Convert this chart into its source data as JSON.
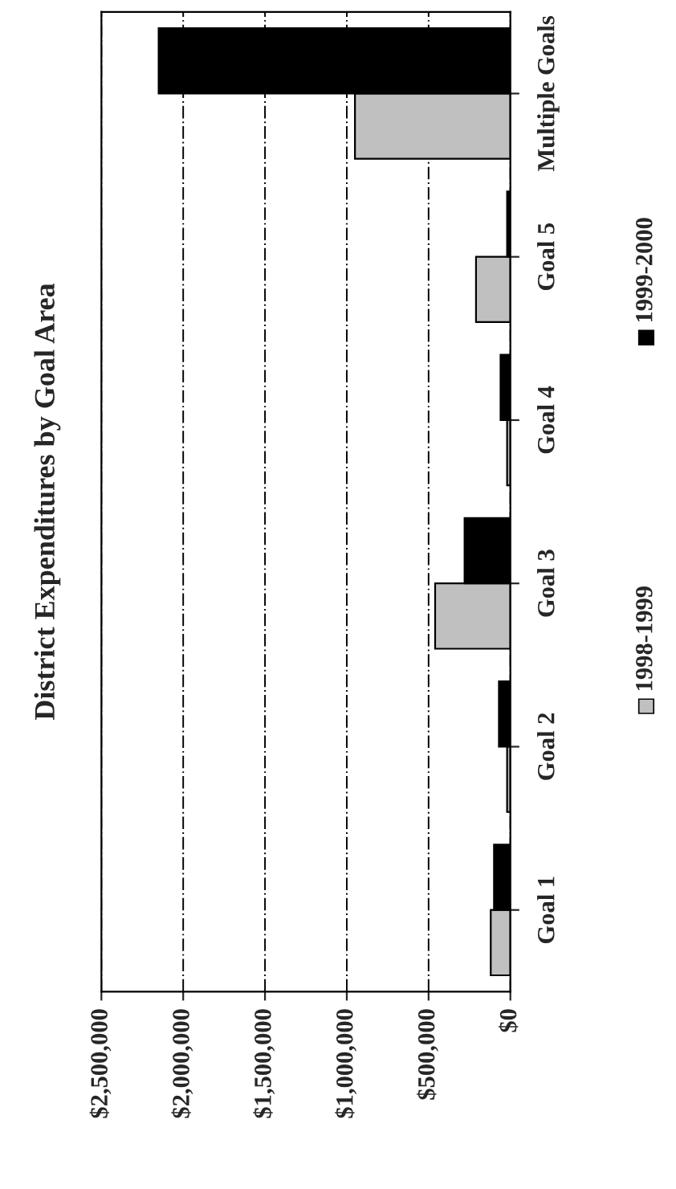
{
  "chart_data": {
    "type": "bar",
    "orientation": "horizontal",
    "title": "District Expenditures by Goal Area",
    "categories": [
      "Multiple Goals",
      "Goal 5",
      "Goal 4",
      "Goal 3",
      "Goal 2",
      "Goal 1"
    ],
    "series": [
      {
        "name": "1998-1999",
        "color": "#c0c0c0",
        "values": [
          950000,
          210000,
          20000,
          460000,
          20000,
          120000
        ]
      },
      {
        "name": "1999-2000",
        "color": "#000000",
        "values": [
          2150000,
          20000,
          60000,
          280000,
          70000,
          100000
        ]
      }
    ],
    "xlim": [
      2500000,
      0
    ],
    "xticks": [
      {
        "value": 2500000,
        "label": "$2,500,000"
      },
      {
        "value": 2000000,
        "label": "$2,000,000"
      },
      {
        "value": 1500000,
        "label": "$1,500,000"
      },
      {
        "value": 1000000,
        "label": "$1,000,000"
      },
      {
        "value": 500000,
        "label": "$500,000"
      },
      {
        "value": 0,
        "label": "$0"
      }
    ],
    "grid": "x",
    "legend": "right"
  }
}
